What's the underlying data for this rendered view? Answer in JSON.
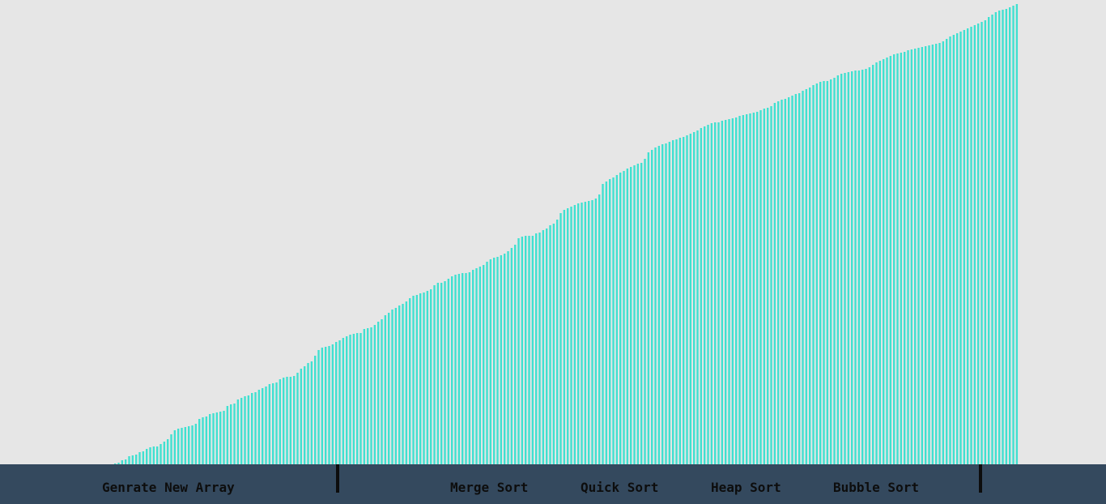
{
  "colors": {
    "background": "#e6e6e6",
    "bar": "#40e0d0",
    "navbar": "#34495e",
    "text": "#0d0d0d"
  },
  "navbar": {
    "generate_label": "Genrate New Array",
    "merge_sort_label": "Merge Sort",
    "quick_sort_label": "Quick Sort",
    "heap_sort_label": "Heap Sort",
    "bubble_sort_label": "Bubble Sort"
  },
  "chart_data": {
    "type": "bar",
    "sorted": true,
    "max_value": 568,
    "values": [
      1,
      2,
      5,
      6,
      10,
      11,
      12,
      15,
      16,
      19,
      21,
      22,
      22,
      25,
      28,
      31,
      37,
      42,
      44,
      45,
      46,
      47,
      48,
      50,
      56,
      58,
      59,
      62,
      63,
      64,
      65,
      66,
      72,
      74,
      75,
      80,
      82,
      84,
      85,
      88,
      89,
      92,
      94,
      96,
      99,
      100,
      101,
      105,
      107,
      108,
      108,
      109,
      113,
      118,
      121,
      125,
      127,
      134,
      141,
      144,
      145,
      146,
      148,
      151,
      153,
      156,
      158,
      160,
      161,
      162,
      162,
      167,
      168,
      169,
      172,
      176,
      179,
      184,
      187,
      191,
      193,
      196,
      198,
      201,
      205,
      208,
      209,
      211,
      212,
      214,
      216,
      221,
      224,
      224,
      226,
      229,
      232,
      234,
      235,
      236,
      236,
      237,
      240,
      242,
      244,
      246,
      250,
      253,
      255,
      256,
      258,
      260,
      263,
      267,
      271,
      279,
      281,
      282,
      282,
      282,
      285,
      286,
      289,
      291,
      295,
      297,
      302,
      310,
      314,
      316,
      318,
      320,
      322,
      323,
      324,
      325,
      326,
      328,
      333,
      346,
      349,
      352,
      354,
      357,
      360,
      362,
      365,
      367,
      369,
      371,
      372,
      377,
      385,
      388,
      391,
      393,
      395,
      396,
      398,
      400,
      401,
      403,
      404,
      406,
      408,
      410,
      412,
      415,
      417,
      419,
      421,
      422,
      422,
      424,
      425,
      426,
      427,
      428,
      430,
      431,
      432,
      433,
      434,
      435,
      437,
      439,
      440,
      442,
      446,
      448,
      450,
      451,
      453,
      455,
      457,
      458,
      461,
      463,
      465,
      468,
      470,
      472,
      473,
      473,
      475,
      477,
      480,
      482,
      483,
      484,
      485,
      486,
      486,
      487,
      488,
      490,
      493,
      496,
      498,
      500,
      502,
      504,
      506,
      507,
      508,
      509,
      511,
      512,
      513,
      514,
      515,
      516,
      517,
      518,
      519,
      520,
      522,
      525,
      528,
      530,
      532,
      534,
      536,
      538,
      540,
      542,
      544,
      546,
      548,
      552,
      555,
      558,
      560,
      561,
      562,
      564,
      566,
      568
    ]
  }
}
